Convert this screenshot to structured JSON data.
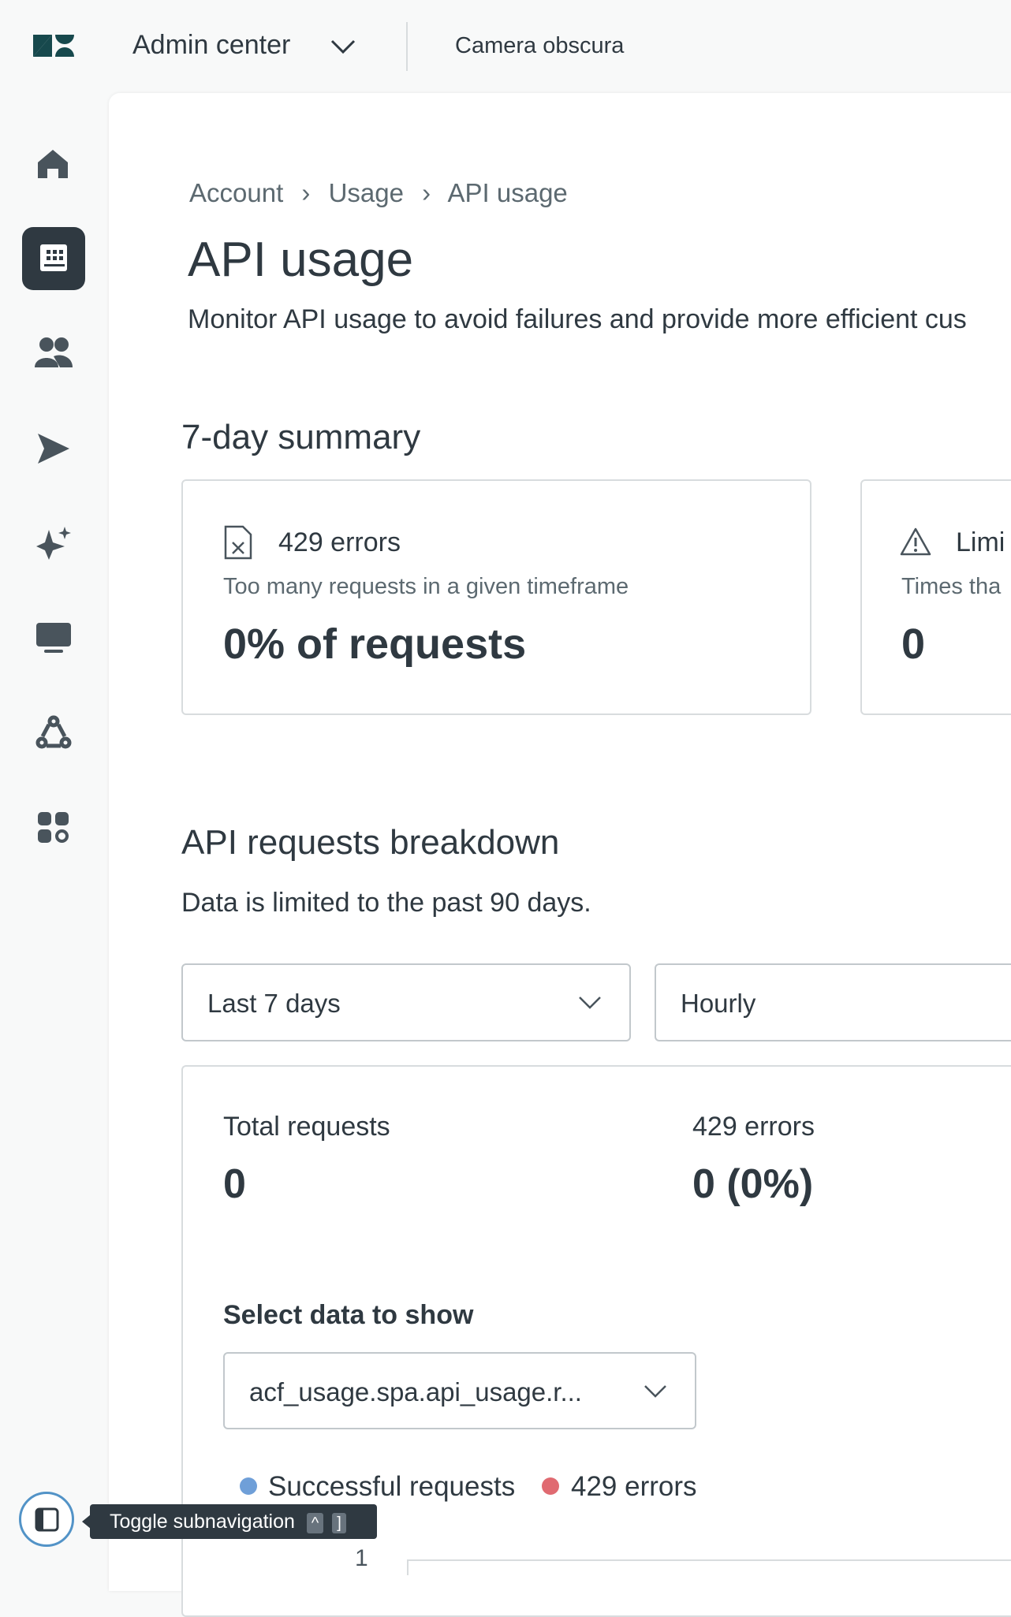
{
  "header": {
    "app": "Admin center",
    "account": "Camera obscura"
  },
  "breadcrumb": [
    "Account",
    "Usage",
    "API usage"
  ],
  "title": "API usage",
  "description": "Monitor API usage to avoid failures and provide more efficient cus",
  "summary": {
    "heading": "7-day summary",
    "cards": [
      {
        "title": "429 errors",
        "subtitle": "Too many requests in a given timeframe",
        "value": "0% of requests"
      },
      {
        "title": "Limi",
        "subtitle": "Times tha",
        "value": "0"
      }
    ]
  },
  "breakdown": {
    "heading": "API requests breakdown",
    "note": "Data is limited to the past 90 days.",
    "range_select": "Last 7 days",
    "interval_select": "Hourly",
    "stats": [
      {
        "label": "Total requests",
        "value": "0"
      },
      {
        "label": "429 errors",
        "value": "0 (0%)"
      }
    ],
    "data_label": "Select data to show",
    "data_select": "acf_usage.spa.api_usage.r...",
    "legend": [
      "Successful requests",
      "429 errors"
    ],
    "axis_tick": "1"
  },
  "tooltip": {
    "text": "Toggle subnavigation",
    "keys": [
      "^",
      "]"
    ]
  }
}
